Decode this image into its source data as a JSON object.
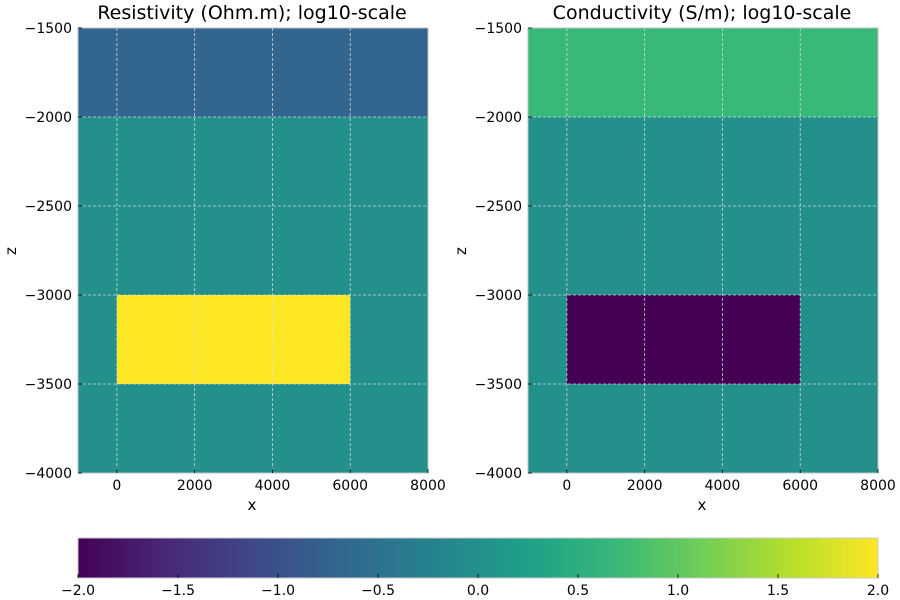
{
  "colors": {
    "viridis": [
      "#440154",
      "#482878",
      "#3e4989",
      "#31688e",
      "#26828e",
      "#1f9e89",
      "#35b779",
      "#6ece58",
      "#b5de2b",
      "#fde725"
    ]
  },
  "chart_data": [
    {
      "type": "heatmap",
      "title": "Resistivity (Ohm.m); log10-scale",
      "xlabel": "x",
      "ylabel": "z",
      "xlim": [
        -1000,
        8000
      ],
      "ylim": [
        -4000,
        -1500
      ],
      "xticks": [
        0,
        2000,
        4000,
        6000,
        8000
      ],
      "xtick_labels": [
        "0",
        "2000",
        "4000",
        "6000",
        "8000"
      ],
      "yticks": [
        -1500,
        -2000,
        -2500,
        -3000,
        -3500,
        -4000
      ],
      "ytick_labels": [
        "−1500",
        "−2000",
        "−2500",
        "−3000",
        "−3500",
        "−4000"
      ],
      "grid": true,
      "regions": [
        {
          "x": [
            -1000,
            8000
          ],
          "z": [
            -2000,
            -1500
          ],
          "value": -0.7
        },
        {
          "x": [
            -1000,
            8000
          ],
          "z": [
            -4000,
            -2000
          ],
          "value": 0.0
        },
        {
          "x": [
            0,
            6000
          ],
          "z": [
            -3500,
            -3000
          ],
          "value": 2.0
        }
      ]
    },
    {
      "type": "heatmap",
      "title": "Conductivity (S/m); log10-scale",
      "xlabel": "x",
      "ylabel": "z",
      "xlim": [
        -1000,
        8000
      ],
      "ylim": [
        -4000,
        -1500
      ],
      "xticks": [
        0,
        2000,
        4000,
        6000,
        8000
      ],
      "xtick_labels": [
        "0",
        "2000",
        "4000",
        "6000",
        "8000"
      ],
      "yticks": [
        -1500,
        -2000,
        -2500,
        -3000,
        -3500,
        -4000
      ],
      "ytick_labels": [
        "−1500",
        "−2000",
        "−2500",
        "−3000",
        "−3500",
        "−4000"
      ],
      "grid": true,
      "regions": [
        {
          "x": [
            -1000,
            8000
          ],
          "z": [
            -2000,
            -1500
          ],
          "value": 0.7
        },
        {
          "x": [
            -1000,
            8000
          ],
          "z": [
            -4000,
            -2000
          ],
          "value": 0.0
        },
        {
          "x": [
            0,
            6000
          ],
          "z": [
            -3500,
            -3000
          ],
          "value": -2.0
        }
      ]
    }
  ],
  "colorbar": {
    "orientation": "horizontal",
    "range": [
      -2.0,
      2.0
    ],
    "ticks": [
      -2.0,
      -1.5,
      -1.0,
      -0.5,
      0.0,
      0.5,
      1.0,
      1.5,
      2.0
    ],
    "tick_labels": [
      "−2.0",
      "−1.5",
      "−1.0",
      "−0.5",
      "0.0",
      "0.5",
      "1.0",
      "1.5",
      "2.0"
    ]
  }
}
